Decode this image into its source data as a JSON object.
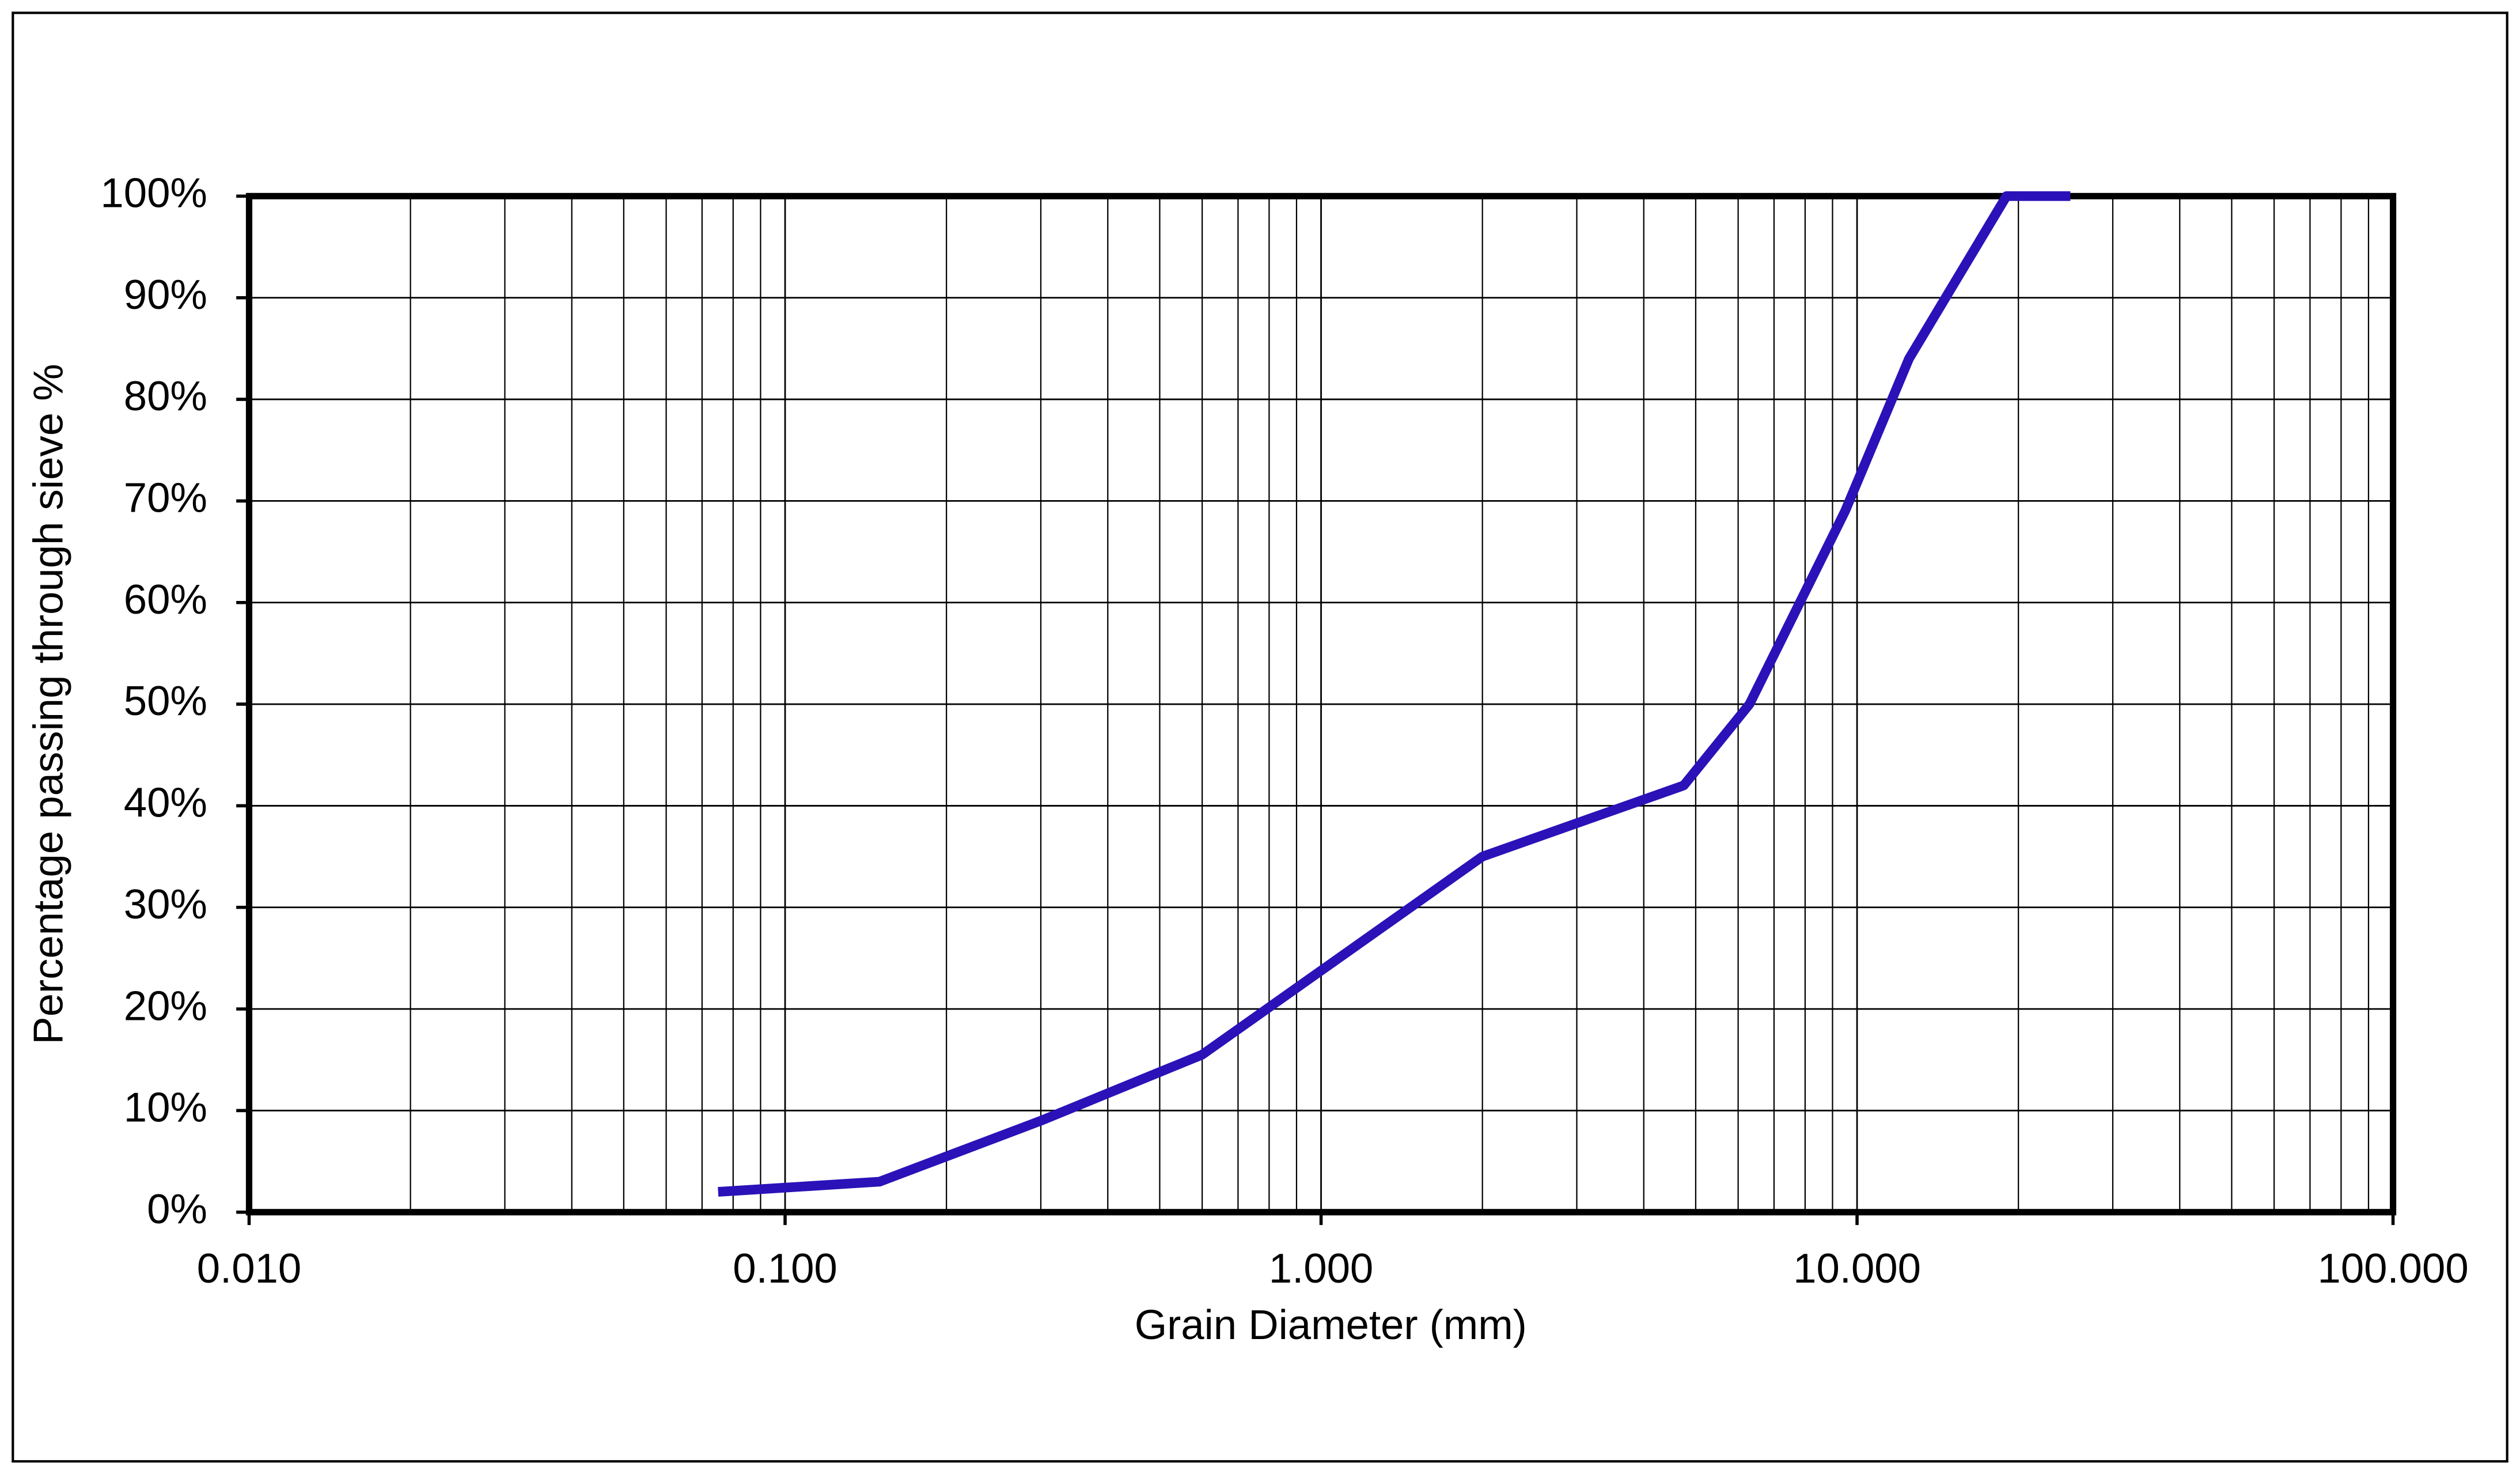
{
  "chart_data": {
    "type": "line",
    "xlabel": "Grain Diameter (mm)",
    "ylabel": "Percentage passing through sieve %",
    "xscale": "log",
    "grid": true,
    "xlim": [
      0.01,
      100
    ],
    "xticks": [
      {
        "value": 0.01,
        "label": "0.010"
      },
      {
        "value": 0.1,
        "label": "0.100"
      },
      {
        "value": 1,
        "label": "1.000"
      },
      {
        "value": 10,
        "label": "10.000"
      },
      {
        "value": 100,
        "label": "100.000"
      }
    ],
    "ylim": [
      0,
      100
    ],
    "yticks": [
      {
        "value": 0,
        "label": "0%"
      },
      {
        "value": 10,
        "label": "10%"
      },
      {
        "value": 20,
        "label": "20%"
      },
      {
        "value": 30,
        "label": "30%"
      },
      {
        "value": 40,
        "label": "40%"
      },
      {
        "value": 50,
        "label": "50%"
      },
      {
        "value": 60,
        "label": "60%"
      },
      {
        "value": 70,
        "label": "70%"
      },
      {
        "value": 80,
        "label": "80%"
      },
      {
        "value": 90,
        "label": "90%"
      },
      {
        "value": 100,
        "label": "100%"
      }
    ],
    "series": [
      {
        "color": "#2a12b8",
        "x": [
          0.075,
          0.15,
          0.3,
          0.6,
          2.0,
          4.75,
          6.3,
          9.5,
          12.5,
          19,
          25
        ],
        "values": [
          2,
          3,
          9,
          15.5,
          35,
          42,
          50,
          69,
          84,
          100,
          100
        ]
      }
    ]
  }
}
